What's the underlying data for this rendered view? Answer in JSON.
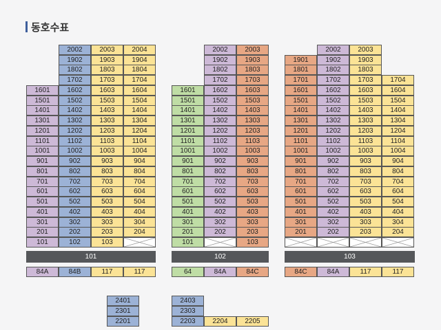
{
  "page": {
    "title": "동호수표"
  },
  "colors": {
    "purple": "#cdb9d7",
    "blue": "#9cb2d6",
    "yellow": "#fbe396",
    "green": "#bfdda5",
    "orange": "#e7a784",
    "empty": "#ffffff",
    "building_bar": "#55575a"
  },
  "icons": {
    "empty_unit": "cross-mark-icon"
  },
  "buildings": [
    {
      "name": "101",
      "lines": [
        {
          "color": "purple",
          "type": "84A",
          "units": [
            "1601",
            "1501",
            "1401",
            "1301",
            "1201",
            "1101",
            "1001",
            "901",
            "801",
            "701",
            "601",
            "501",
            "401",
            "301",
            "201",
            "101"
          ]
        },
        {
          "color": "blue",
          "type": "84B",
          "units": [
            "2002",
            "1902",
            "1802",
            "1702",
            "1602",
            "1502",
            "1402",
            "1302",
            "1202",
            "1102",
            "1002",
            "902",
            "802",
            "702",
            "602",
            "502",
            "402",
            "302",
            "202",
            "102"
          ]
        },
        {
          "color": "yellow",
          "type": "117",
          "units": [
            "2003",
            "1903",
            "1803",
            "1703",
            "1603",
            "1503",
            "1403",
            "1303",
            "1203",
            "1103",
            "1003",
            "903",
            "803",
            "703",
            "603",
            "503",
            "403",
            "303",
            "203",
            "103"
          ]
        },
        {
          "color": "yellow",
          "type": "117",
          "units": [
            "2004",
            "1904",
            "1804",
            "1704",
            "1604",
            "1504",
            "1404",
            "1304",
            "1204",
            "1104",
            "1004",
            "904",
            "804",
            "704",
            "604",
            "504",
            "404",
            "304",
            "204",
            ""
          ]
        }
      ]
    },
    {
      "name": "102",
      "lines": [
        {
          "color": "green",
          "type": "64",
          "units": [
            "1601",
            "1501",
            "1401",
            "1301",
            "1201",
            "1101",
            "1001",
            "901",
            "801",
            "701",
            "601",
            "501",
            "401",
            "301",
            "201",
            "101"
          ]
        },
        {
          "color": "purple",
          "type": "84A",
          "units": [
            "2002",
            "1902",
            "1802",
            "1702",
            "1602",
            "1502",
            "1402",
            "1302",
            "1202",
            "1102",
            "1002",
            "902",
            "802",
            "702",
            "602",
            "502",
            "402",
            "302",
            "202",
            ""
          ]
        },
        {
          "color": "orange",
          "type": "84C",
          "units": [
            "2003",
            "1903",
            "1803",
            "1703",
            "1603",
            "1503",
            "1403",
            "1303",
            "1203",
            "1103",
            "1003",
            "903",
            "803",
            "703",
            "603",
            "503",
            "403",
            "303",
            "203",
            "103"
          ]
        }
      ]
    },
    {
      "name": "103",
      "lines": [
        {
          "color": "orange",
          "type": "84C",
          "units": [
            "1901",
            "1801",
            "1701",
            "1601",
            "1501",
            "1401",
            "1301",
            "1201",
            "1101",
            "1001",
            "901",
            "801",
            "701",
            "601",
            "501",
            "401",
            "301",
            "201",
            ""
          ]
        },
        {
          "color": "purple",
          "type": "84A",
          "units": [
            "2002",
            "1902",
            "1802",
            "1702",
            "1602",
            "1502",
            "1402",
            "1302",
            "1202",
            "1102",
            "1002",
            "902",
            "802",
            "702",
            "602",
            "502",
            "402",
            "302",
            "202",
            ""
          ]
        },
        {
          "color": "yellow",
          "type": "117",
          "units": [
            "2003",
            "1903",
            "1803",
            "1703",
            "1603",
            "1503",
            "1403",
            "1303",
            "1203",
            "1103",
            "1003",
            "903",
            "803",
            "703",
            "603",
            "503",
            "403",
            "303",
            "203",
            ""
          ]
        },
        {
          "color": "yellow",
          "type": "117",
          "units": [
            "1704",
            "1604",
            "1504",
            "1404",
            "1304",
            "1204",
            "1104",
            "1004",
            "904",
            "804",
            "704",
            "604",
            "504",
            "404",
            "304",
            "204",
            ""
          ]
        }
      ]
    },
    {
      "name": "",
      "lines": [
        {
          "color": "blue",
          "type": "",
          "units": [
            "2401",
            "2301",
            "2201"
          ]
        },
        {
          "color": "blue",
          "type": "",
          "units": [
            "2403",
            "2303",
            "2203"
          ]
        },
        {
          "color": "yellow",
          "type": "",
          "units": [
            "2204"
          ]
        },
        {
          "color": "yellow",
          "type": "",
          "units": [
            "2205"
          ]
        }
      ]
    }
  ]
}
